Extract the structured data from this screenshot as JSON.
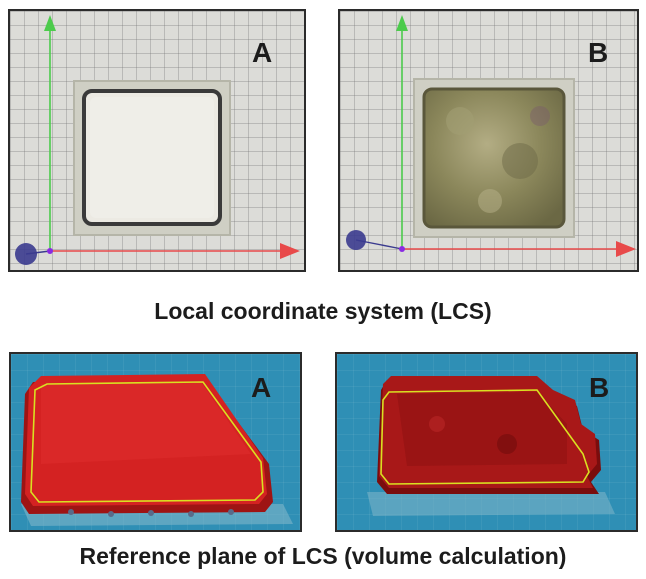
{
  "top_caption": "Local coordinate system (LCS)",
  "bottom_caption": "Reference plane of LCS (volume calculation)",
  "panels": {
    "top_a": {
      "label": "A"
    },
    "top_b": {
      "label": "B"
    },
    "bottom_a": {
      "label": "A"
    },
    "bottom_b": {
      "label": "B"
    }
  },
  "colors": {
    "x_axis": "#e84a4a",
    "y_axis": "#4ccb4c",
    "origin_sphere": "#3b3b8f",
    "sample_a": "#ecebe4",
    "sample_b": "#8e8b5e",
    "scan_surface": "#d42222",
    "reference_outline": "#d9e021",
    "background_blue": "#2f8fb5"
  }
}
